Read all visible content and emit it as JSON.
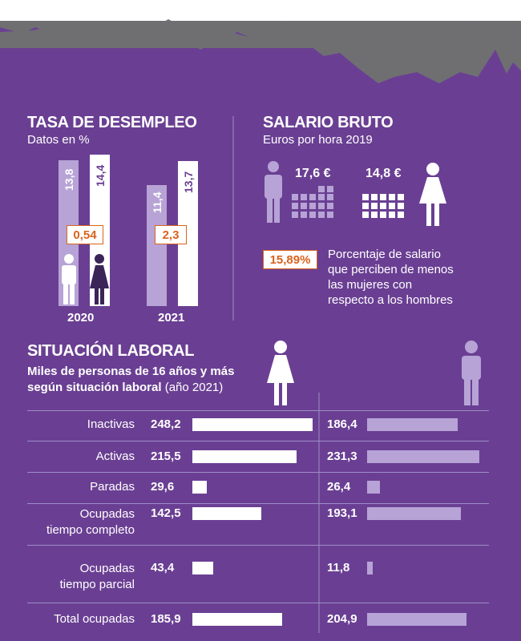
{
  "colors": {
    "background": "#6a3f93",
    "mountain": "#6f6f72",
    "women_bar": "#ffffff",
    "men_bar": "#b7a3d6",
    "highlight": "#d9631e"
  },
  "icons": {
    "man": "man-figure-icon",
    "woman": "woman-figure-icon",
    "grid": "dot-grid-icon"
  },
  "desempleo": {
    "title": "TASA DE DESEMPLEO",
    "subtitle": "Datos en %",
    "groups": [
      {
        "year": "2020",
        "men": "13,8",
        "women": "14,4",
        "gap": "0,54"
      },
      {
        "year": "2021",
        "men": "11,4",
        "women": "13,7",
        "gap": "2,3"
      }
    ]
  },
  "salario": {
    "title": "SALARIO BRUTO",
    "subtitle": "Euros por hora 2019",
    "men_value": "17,6 €",
    "women_value": "14,8 €",
    "gap_value": "15,89%",
    "gap_text": [
      "Porcentaje de salario",
      "que perciben de menos",
      "las mujeres con",
      "respecto a los hombres"
    ]
  },
  "laboral": {
    "title": "SITUACIÓN LABORAL",
    "subtitle_line1": "Miles de personas de 16 años y más",
    "subtitle_line2_bold": "según situación laboral",
    "subtitle_line2_normal": "(año 2021)"
  },
  "chart_data": [
    {
      "type": "bar",
      "title": "TASA DE DESEMPLEO",
      "subtitle": "Datos en %",
      "categories": [
        "2020",
        "2021"
      ],
      "series": [
        {
          "values": [
            13.8,
            11.4
          ]
        },
        {
          "values": [
            14.4,
            13.7
          ]
        }
      ],
      "annotations": [
        "0,54",
        "2,3"
      ]
    },
    {
      "type": "bar",
      "title": "SITUACIÓN LABORAL",
      "subtitle": "Miles de personas de 16 años y más según situación laboral (año 2021)",
      "categories": [
        "Inactivas",
        "Activas",
        "Paradas",
        "Ocupadas tiempo completo",
        "Ocupadas tiempo parcial",
        "Total ocupadas"
      ],
      "labels": [
        [
          "Inactivas"
        ],
        [
          "Activas"
        ],
        [
          "Paradas"
        ],
        [
          "Ocupadas",
          "tiempo completo"
        ],
        [
          "Ocupadas",
          "tiempo parcial"
        ],
        [
          "Total ocupadas"
        ]
      ],
      "series": [
        {
          "values": [
            248.2,
            215.5,
            29.6,
            142.5,
            43.4,
            185.9
          ],
          "display": [
            "248,2",
            "215,5",
            "29,6",
            "142,5",
            "43,4",
            "185,9"
          ]
        },
        {
          "values": [
            186.4,
            231.3,
            26.4,
            193.1,
            11.8,
            204.9
          ],
          "display": [
            "186,4",
            "231,3",
            "26,4",
            "193,1",
            "11,8",
            "204,9"
          ]
        }
      ]
    }
  ]
}
